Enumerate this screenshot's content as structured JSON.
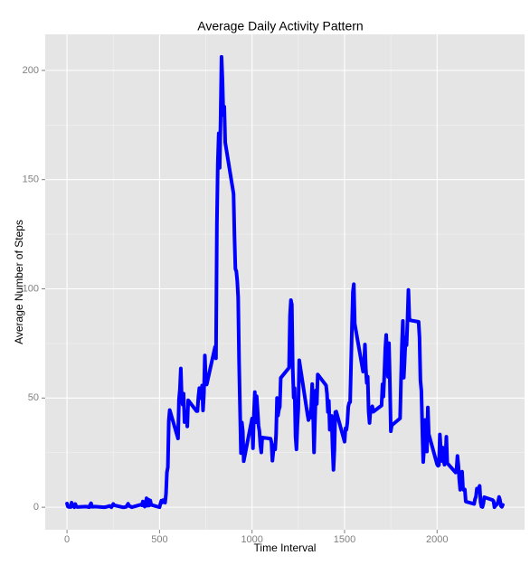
{
  "chart_data": {
    "type": "line",
    "title": "Average Daily Activity Pattern",
    "x_label": "Time Interval",
    "y_label": "Average Number of Steps",
    "x": [
      0,
      5,
      10,
      15,
      20,
      25,
      30,
      35,
      40,
      45,
      50,
      55,
      100,
      110,
      120,
      125,
      130,
      135,
      140,
      150,
      200,
      215,
      230,
      240,
      250,
      255,
      300,
      310,
      320,
      330,
      335,
      340,
      350,
      400,
      405,
      410,
      420,
      430,
      435,
      440,
      445,
      450,
      455,
      500,
      505,
      510,
      515,
      520,
      525,
      530,
      535,
      540,
      545,
      550,
      555,
      600,
      605,
      610,
      615,
      620,
      625,
      630,
      635,
      640,
      645,
      650,
      655,
      700,
      705,
      710,
      715,
      720,
      725,
      730,
      735,
      740,
      745,
      750,
      755,
      800,
      805,
      810,
      815,
      820,
      825,
      830,
      835,
      840,
      845,
      850,
      855,
      900,
      905,
      910,
      915,
      920,
      925,
      930,
      935,
      940,
      945,
      950,
      955,
      1000,
      1005,
      1010,
      1015,
      1020,
      1025,
      1030,
      1035,
      1040,
      1045,
      1050,
      1055,
      1100,
      1105,
      1110,
      1115,
      1120,
      1125,
      1130,
      1135,
      1140,
      1145,
      1150,
      1155,
      1200,
      1205,
      1210,
      1215,
      1220,
      1225,
      1230,
      1235,
      1240,
      1245,
      1250,
      1255,
      1300,
      1305,
      1310,
      1315,
      1320,
      1325,
      1330,
      1335,
      1340,
      1345,
      1350,
      1355,
      1400,
      1405,
      1410,
      1415,
      1420,
      1425,
      1430,
      1435,
      1440,
      1445,
      1450,
      1455,
      1500,
      1505,
      1510,
      1515,
      1520,
      1525,
      1530,
      1535,
      1540,
      1545,
      1550,
      1555,
      1600,
      1605,
      1610,
      1615,
      1620,
      1625,
      1630,
      1635,
      1640,
      1645,
      1650,
      1655,
      1700,
      1705,
      1710,
      1715,
      1720,
      1725,
      1730,
      1735,
      1740,
      1745,
      1750,
      1755,
      1800,
      1805,
      1810,
      1815,
      1820,
      1825,
      1830,
      1835,
      1840,
      1845,
      1850,
      1855,
      1900,
      1905,
      1910,
      1915,
      1920,
      1925,
      1930,
      1935,
      1940,
      1945,
      1950,
      1955,
      2000,
      2005,
      2010,
      2015,
      2020,
      2025,
      2030,
      2035,
      2040,
      2045,
      2050,
      2055,
      2100,
      2105,
      2110,
      2115,
      2120,
      2125,
      2130,
      2135,
      2140,
      2145,
      2150,
      2155,
      2200,
      2205,
      2210,
      2215,
      2220,
      2225,
      2230,
      2235,
      2240,
      2245,
      2250,
      2255,
      2300,
      2305,
      2310,
      2315,
      2320,
      2325,
      2330,
      2335,
      2340,
      2345,
      2350,
      2355
    ],
    "series": [
      {
        "color": "#0000ff",
        "values": [
          1.7,
          0.3,
          0.1,
          0.2,
          0.1,
          2.1,
          0.5,
          0.9,
          0,
          1.5,
          0.3,
          0.1,
          0.3,
          0.2,
          0,
          1.1,
          1.8,
          0.2,
          0.2,
          0.3,
          0,
          0.2,
          0.6,
          0,
          1.5,
          0.9,
          0,
          0,
          0.2,
          1.6,
          0.6,
          0.5,
          0,
          1.2,
          0.9,
          2.6,
          0.3,
          4.1,
          0.7,
          3.5,
          0.8,
          3.1,
          1.1,
          0,
          1.6,
          3,
          2.2,
          3.3,
          3,
          2.1,
          6.1,
          16,
          18.3,
          39.5,
          44.5,
          31.5,
          49.3,
          53.8,
          63.5,
          50,
          47,
          52,
          39,
          44,
          44,
          37,
          49,
          44,
          44,
          50.5,
          54.5,
          49.9,
          51,
          55.7,
          44.3,
          52.3,
          69.5,
          57.8,
          56.2,
          73.4,
          68.2,
          129.4,
          157.5,
          171.2,
          155.4,
          177.3,
          206.2,
          195.9,
          179.6,
          183.4,
          167,
          143.5,
          124,
          109.1,
          108.1,
          103.7,
          96,
          66.2,
          45.2,
          24.8,
          38.8,
          35,
          21.1,
          40.6,
          27,
          42.4,
          52.7,
          38.9,
          50.8,
          44.3,
          37.4,
          34.7,
          28.3,
          25.1,
          31.9,
          31.4,
          29.7,
          21.3,
          25.5,
          28.4,
          26.5,
          33.4,
          50,
          42,
          44.6,
          46,
          59.2,
          63.9,
          87.7,
          94.8,
          92.8,
          63.4,
          50.2,
          54.5,
          32.4,
          26.5,
          37.7,
          45.1,
          67.3,
          42.3,
          39.9,
          43.3,
          41,
          46.2,
          56.4,
          42.8,
          25.1,
          40,
          53.5,
          47.3,
          60.8,
          55.8,
          52,
          43.6,
          48.7,
          35.5,
          37.5,
          41.8,
          27.5,
          17.1,
          26.1,
          43.6,
          43.8,
          30,
          36.1,
          35.5,
          38.8,
          46,
          47.8,
          48.1,
          65.3,
          82.9,
          98.7,
          102.1,
          84,
          62.1,
          64.1,
          74.5,
          63.2,
          56.9,
          59.8,
          43.9,
          38.6,
          44.7,
          45.5,
          46.2,
          43.7,
          46.6,
          56.3,
          50.7,
          61.2,
          72.7,
          78.9,
          68.9,
          59.7,
          75.1,
          56.5,
          34.8,
          37.5,
          40.7,
          58,
          74.7,
          85.3,
          59.3,
          67.8,
          77.7,
          74.2,
          85.3,
          99.5,
          86.6,
          85.6,
          84.9,
          77.8,
          58,
          53.4,
          36.3,
          20.7,
          27.4,
          40,
          30.2,
          25.5,
          45.7,
          33.5,
          19.6,
          19,
          19.3,
          33.3,
          26.8,
          21.2,
          27.3,
          21.3,
          19.5,
          21.3,
          32.3,
          20.2,
          15.9,
          17.2,
          23.5,
          19.2,
          12.5,
          8,
          14.7,
          16.3,
          8.7,
          7.8,
          8.1,
          2.6,
          1.5,
          3.7,
          4.8,
          8.5,
          7.1,
          8.7,
          9.8,
          2.2,
          0.3,
          0.1,
          1.6,
          4.6,
          3.3,
          2.8,
          0,
          0.8,
          1,
          1.6,
          2.6,
          4.7,
          3.3,
          0.6,
          0.2,
          1.1
        ]
      }
    ],
    "xlim": [
      -117.75,
      2472.75
    ],
    "ylim": [
      -10.3,
      216.5
    ],
    "xticks": [
      0,
      500,
      1000,
      1500,
      2000
    ],
    "yticks": [
      0,
      50,
      100,
      150,
      200
    ],
    "grid": true
  }
}
